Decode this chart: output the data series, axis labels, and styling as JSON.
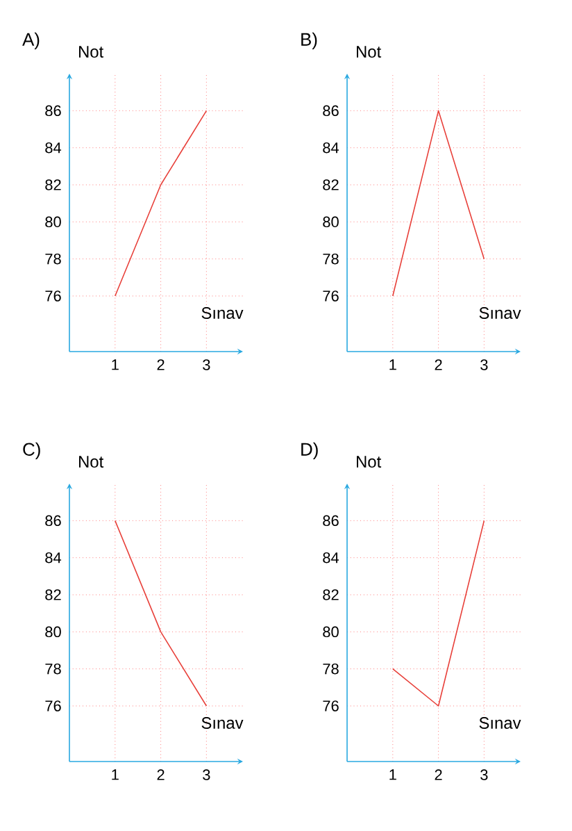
{
  "chart_data": [
    {
      "type": "line",
      "title": "A)",
      "xlabel": "Sınav",
      "ylabel": "Not",
      "x": [
        1,
        2,
        3
      ],
      "values": [
        76,
        82,
        86
      ],
      "color": "#e8403a",
      "xlim": [
        0,
        3.8
      ],
      "ylim": [
        73,
        88
      ],
      "xticks": [
        1,
        2,
        3
      ],
      "yticks": [
        76,
        78,
        80,
        82,
        84,
        86
      ],
      "grid": true
    },
    {
      "type": "line",
      "title": "B)",
      "xlabel": "Sınav",
      "ylabel": "Not",
      "x": [
        1,
        2,
        3
      ],
      "values": [
        76,
        86,
        78
      ],
      "color": "#e8403a",
      "xlim": [
        0,
        3.8
      ],
      "ylim": [
        73,
        88
      ],
      "xticks": [
        1,
        2,
        3
      ],
      "yticks": [
        76,
        78,
        80,
        82,
        84,
        86
      ],
      "grid": true
    },
    {
      "type": "line",
      "title": "C)",
      "xlabel": "Sınav",
      "ylabel": "Not",
      "x": [
        1,
        2,
        3
      ],
      "values": [
        86,
        80,
        76
      ],
      "color": "#e8403a",
      "xlim": [
        0,
        3.8
      ],
      "ylim": [
        73,
        88
      ],
      "xticks": [
        1,
        2,
        3
      ],
      "yticks": [
        76,
        78,
        80,
        82,
        84,
        86
      ],
      "grid": true
    },
    {
      "type": "line",
      "title": "D)",
      "xlabel": "Sınav",
      "ylabel": "Not",
      "x": [
        1,
        2,
        3
      ],
      "values": [
        78,
        76,
        86
      ],
      "color": "#e8403a",
      "xlim": [
        0,
        3.8
      ],
      "ylim": [
        73,
        88
      ],
      "xticks": [
        1,
        2,
        3
      ],
      "yticks": [
        76,
        78,
        80,
        82,
        84,
        86
      ],
      "grid": true
    }
  ]
}
